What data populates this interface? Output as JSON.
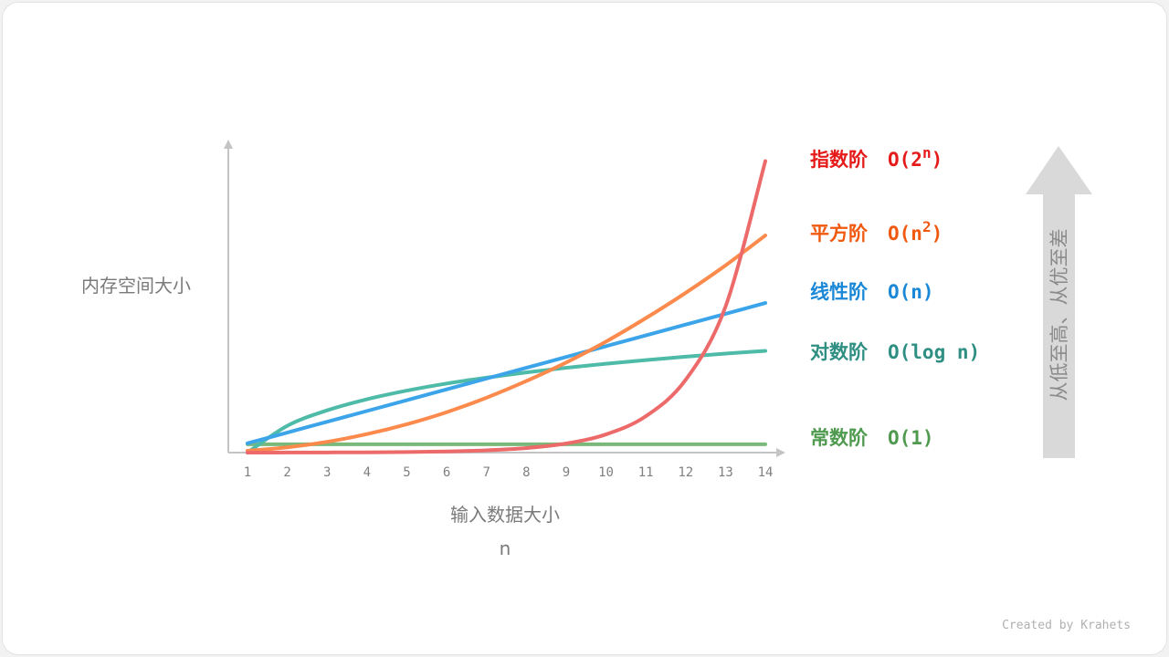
{
  "chart_data": {
    "type": "line",
    "title": "",
    "xlabel": "输入数据大小",
    "xlabel_sub": "n",
    "ylabel": "内存空间大小",
    "x": [
      1,
      2,
      3,
      4,
      5,
      6,
      7,
      8,
      9,
      10,
      11,
      12,
      13,
      14
    ],
    "xlim": [
      1,
      14
    ],
    "ylim": [
      0,
      100
    ],
    "grid": false,
    "legend_placement": "right",
    "series": [
      {
        "name": "常数阶",
        "notation": "O(1)",
        "line_color": "#7ab97a",
        "label_color": "#4f9a4f",
        "values": [
          2.7,
          2.7,
          2.7,
          2.7,
          2.7,
          2.7,
          2.7,
          2.7,
          2.7,
          2.7,
          2.7,
          2.7,
          2.7,
          2.7
        ]
      },
      {
        "name": "对数阶",
        "notation": "O(log n)",
        "line_color": "#4ebaa8",
        "label_color": "#2e8f82",
        "values": [
          0,
          8.7,
          13.7,
          17.3,
          20.1,
          22.4,
          24.3,
          26.0,
          27.5,
          28.8,
          30.0,
          31.1,
          32.1,
          33.0
        ]
      },
      {
        "name": "线性阶",
        "notation": "O(n)",
        "line_color": "#3ca5ea",
        "label_color": "#1a88d6",
        "values": [
          3.0,
          6.5,
          10.0,
          13.5,
          17.0,
          20.5,
          24.0,
          27.5,
          31.0,
          34.5,
          38.0,
          41.5,
          45.0,
          48.5
        ]
      },
      {
        "name": "平方阶",
        "notation_base": "O(n",
        "notation_sup": "2",
        "notation_end": ")",
        "line_color": "#fb8a4c",
        "label_color": "#f0590f",
        "values": [
          0.6,
          1.7,
          3.5,
          6.0,
          9.2,
          13.1,
          17.8,
          23.2,
          29.2,
          36.0,
          43.6,
          51.8,
          60.7,
          70.4
        ]
      },
      {
        "name": "指数阶",
        "notation_base": "O(2",
        "notation_sup": "n",
        "notation_end": ")",
        "line_color": "#ec6a6a",
        "label_color": "#e51b1b",
        "values": [
          0.01,
          0.02,
          0.05,
          0.09,
          0.18,
          0.37,
          0.74,
          1.48,
          2.95,
          5.9,
          11.8,
          23.6,
          47.3,
          94.5
        ]
      }
    ],
    "annotation": "从低至高、从优至差",
    "arrow_color": "#d9d9d9"
  },
  "credit": "Created by Krahets"
}
